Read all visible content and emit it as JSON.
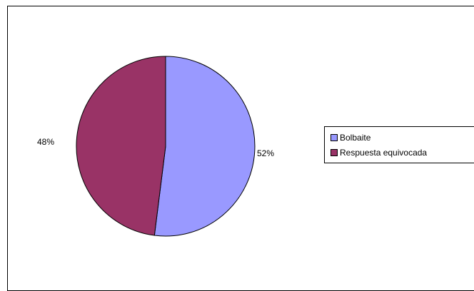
{
  "chart_data": {
    "type": "pie",
    "categories": [
      "Bolbaite",
      "Respuesta equivocada"
    ],
    "values": [
      52,
      48
    ],
    "labels": [
      "52%",
      "48%"
    ],
    "colors": [
      "#9999ff",
      "#993366"
    ],
    "legend_position": "right"
  }
}
